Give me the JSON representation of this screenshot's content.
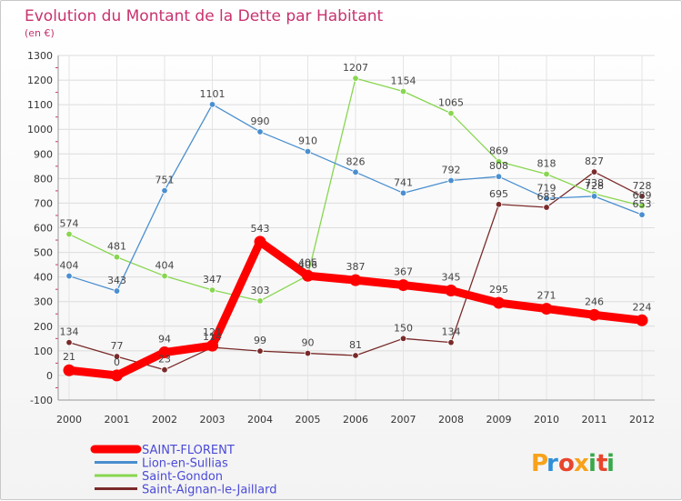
{
  "chart_data": {
    "type": "line",
    "title": "Evolution du Montant de la Dette par Habitant",
    "subtitle": "(en €)",
    "x": [
      "2000",
      "2001",
      "2002",
      "2003",
      "2004",
      "2005",
      "2006",
      "2007",
      "2008",
      "2009",
      "2010",
      "2011",
      "2012"
    ],
    "ylim": [
      -100,
      1300
    ],
    "yticks": [
      -100,
      0,
      100,
      200,
      300,
      400,
      500,
      600,
      700,
      800,
      900,
      1000,
      1100,
      1200,
      1300
    ],
    "grid": true,
    "legend_position": "bottom-left",
    "series": [
      {
        "name": "SAINT-FLORENT",
        "color": "#ff0000",
        "values": [
          21,
          0,
          94,
          121,
          543,
          405,
          387,
          367,
          345,
          295,
          271,
          246,
          224
        ]
      },
      {
        "name": "Lion-en-Sullias",
        "color": "#4a8fcf",
        "values": [
          404,
          343,
          751,
          1101,
          990,
          910,
          826,
          741,
          792,
          808,
          719,
          728,
          653
        ]
      },
      {
        "name": "Saint-Gondon",
        "color": "#88d64f",
        "values": [
          574,
          481,
          404,
          347,
          303,
          406,
          1207,
          1154,
          1065,
          869,
          818,
          738,
          689
        ]
      },
      {
        "name": "Saint-Aignan-le-Jaillard",
        "color": "#7a2a2a",
        "values": [
          134,
          77,
          23,
          114,
          99,
          90,
          81,
          150,
          134,
          695,
          683,
          827,
          728
        ]
      }
    ]
  },
  "logo": {
    "letters": [
      "P",
      "r",
      "o",
      "x",
      "i",
      "t",
      "i"
    ],
    "colors": [
      "#f7a21b",
      "#2f8fd8",
      "#e8452c",
      "#f7a21b",
      "#39a84a",
      "#e8452c",
      "#39a84a"
    ]
  }
}
